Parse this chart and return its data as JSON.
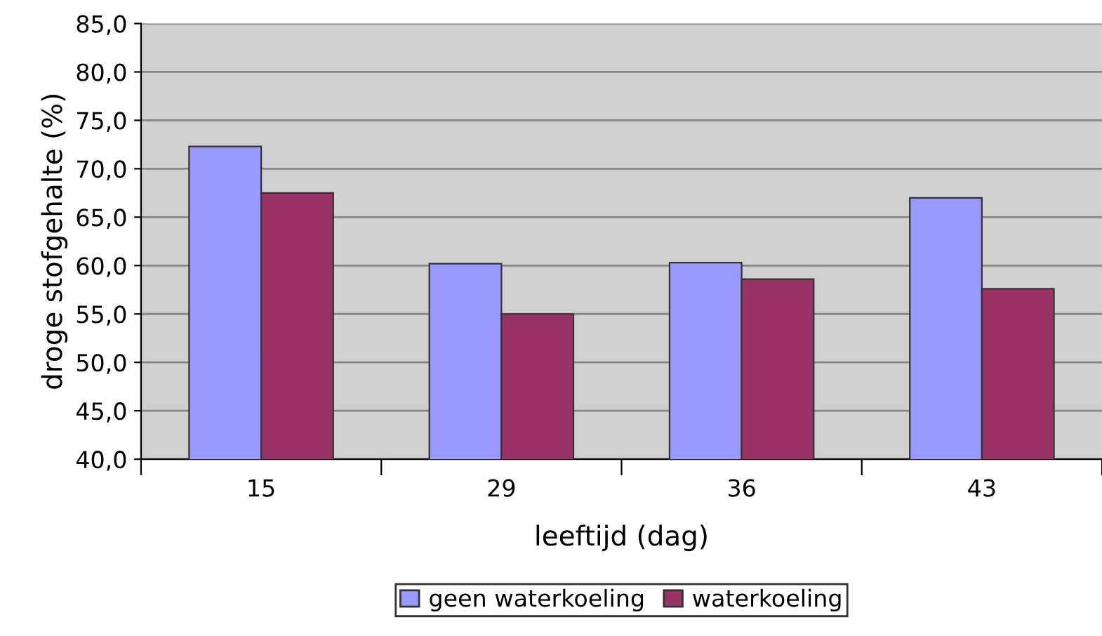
{
  "chart_data": {
    "type": "bar",
    "xlabel": "leeftijd (dag)",
    "ylabel": "droge stofgehalte (%)",
    "categories": [
      "15",
      "29",
      "36",
      "43"
    ],
    "series": [
      {
        "name": "geen waterkoeling",
        "color": "#9999ff",
        "values": [
          72.3,
          60.2,
          60.3,
          67.0
        ]
      },
      {
        "name": "waterkoeling",
        "color": "#993366",
        "values": [
          67.5,
          55.0,
          58.6,
          57.6
        ]
      }
    ],
    "ylim": [
      40,
      85
    ],
    "yticks": [
      {
        "value": 40,
        "label": "40,0"
      },
      {
        "value": 45,
        "label": "45,0"
      },
      {
        "value": 50,
        "label": "50,0"
      },
      {
        "value": 55,
        "label": "55,0"
      },
      {
        "value": 60,
        "label": "60,0"
      },
      {
        "value": 65,
        "label": "65,0"
      },
      {
        "value": 70,
        "label": "70,0"
      },
      {
        "value": 75,
        "label": "75,0"
      },
      {
        "value": 80,
        "label": "80,0"
      },
      {
        "value": 85,
        "label": "85,0"
      }
    ],
    "grid": "y",
    "legend": "bottom"
  }
}
